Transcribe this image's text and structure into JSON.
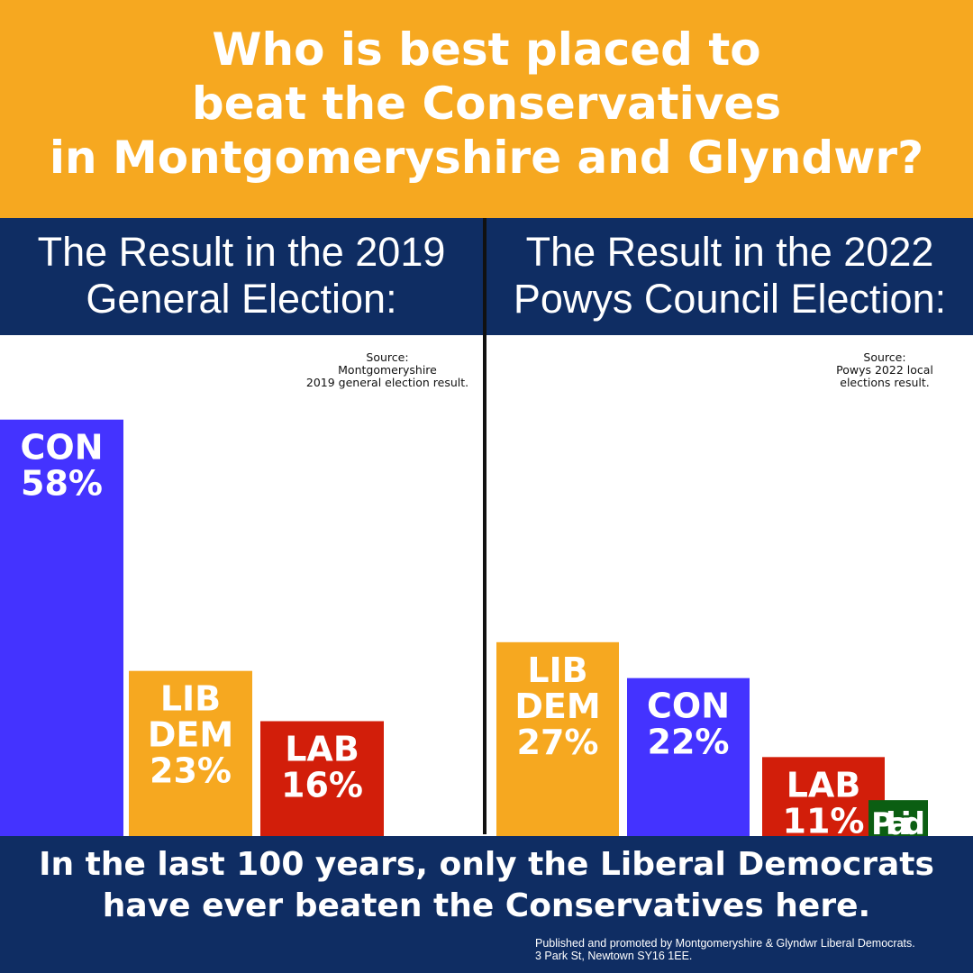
{
  "headline": {
    "lines": [
      "Who is best placed to",
      "beat the Conservatives",
      "in Montgomeryshire and Glyndwr?"
    ]
  },
  "panels": [
    {
      "header_lines": [
        "The Result in the 2019",
        "General Election:"
      ],
      "source_lines": [
        "Source:",
        "Montgomeryshire",
        "2019 general election result."
      ]
    },
    {
      "header_lines": [
        "The Result in the 2022",
        "Powys Council Election:"
      ],
      "source_lines": [
        "Source:",
        "Powys 2022 local",
        "elections result."
      ]
    }
  ],
  "footer": {
    "lines": [
      "In the last 100 years, only the Liberal Democrats",
      "have ever beaten the Conservatives here."
    ],
    "imprint_lines": [
      "Published and promoted by Montgomeryshire & Glyndwr Liberal Democrats.",
      "3 Park St, Newtown SY16 1EE."
    ]
  },
  "colors": {
    "orange": "#f6a820",
    "navy": "#0f2d63",
    "con_blue": "#4433ff",
    "lab_red": "#d21e0a",
    "plaid_green": "#0b5e12"
  },
  "chart_data": [
    {
      "type": "bar",
      "categories": [
        "CON",
        "LIB DEM",
        "LAB"
      ],
      "values": [
        58,
        23,
        16
      ],
      "value_labels": [
        "58%",
        "23%",
        "16%"
      ],
      "bar_label_lines": [
        [
          "CON",
          "58%"
        ],
        [
          "LIB",
          "DEM",
          "23%"
        ],
        [
          "LAB",
          "16%"
        ]
      ],
      "bar_colors": [
        "#4433ff",
        "#f6a820",
        "#d21e0a"
      ]
    },
    {
      "type": "bar",
      "categories": [
        "LIB DEM",
        "CON",
        "LAB",
        "Plaid"
      ],
      "values": [
        27,
        22,
        11,
        5
      ],
      "value_labels": [
        "27%",
        "22%",
        "11%",
        "5%"
      ],
      "bar_label_lines": [
        [
          "LIB",
          "DEM",
          "27%"
        ],
        [
          "CON",
          "22%"
        ],
        [
          "LAB",
          "11%"
        ],
        [
          "Plaid",
          "5%"
        ]
      ],
      "bar_colors": [
        "#f6a820",
        "#4433ff",
        "#d21e0a",
        "#0b5e12"
      ]
    }
  ]
}
